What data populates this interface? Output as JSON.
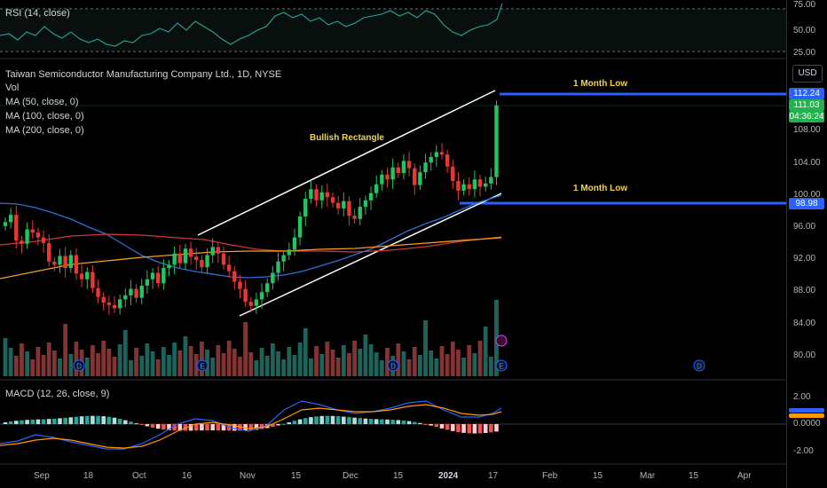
{
  "rsi_pane": {
    "label": "RSI (14, close)",
    "ticks": [
      "75.00",
      "50.00",
      "25.00"
    ]
  },
  "main_pane": {
    "title": "Taiwan Semiconductor Manufacturing Company Ltd., 1D, NYSE",
    "indicators": [
      "Vol",
      "MA (50, close, 0)",
      "MA (100, close, 0)",
      "MA (200, close, 0)"
    ],
    "currency": "USD",
    "ticks": [
      "108.00",
      "104.00",
      "100.00",
      "96.00",
      "92.00",
      "88.00",
      "84.00",
      "80.00"
    ],
    "price_tags": {
      "upper_level": "112.24",
      "last_price": "111.03",
      "countdown": "04:36:24",
      "lower_level": "98.98"
    },
    "annotations": {
      "pattern": "Bullish Rectangle",
      "upper_label": "1 Month Low",
      "lower_label": "1 Month Low"
    },
    "event_markers": [
      "D",
      "E",
      "D",
      "E",
      "E",
      "D"
    ]
  },
  "macd_pane": {
    "label": "MACD (12, 26, close, 9)",
    "ticks": [
      "2.00",
      "0.0000",
      "-2.00"
    ]
  },
  "time_axis": {
    "labels": [
      "Sep",
      "18",
      "Oct",
      "16",
      "Nov",
      "15",
      "Dec",
      "15",
      "2024",
      "17",
      "Feb",
      "15",
      "Mar",
      "15",
      "Apr"
    ]
  },
  "colors": {
    "up": "#26a69a",
    "down": "#ef5350",
    "candle_up": "#22c55e",
    "candle_down": "#e53935",
    "ma50": "#2962ff",
    "ma100": "#e53935",
    "ma200": "#ff9800",
    "level_line": "#2962ff",
    "annotation": "#f0d44c"
  }
}
